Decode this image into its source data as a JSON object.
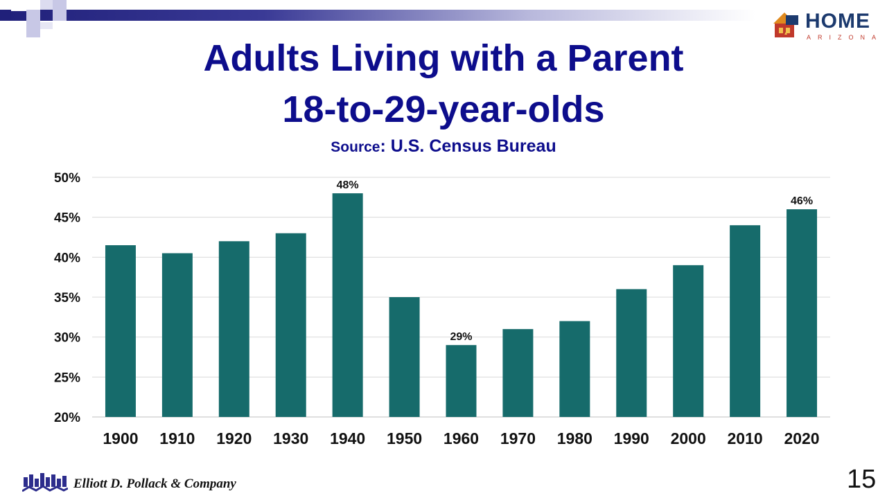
{
  "slide": {
    "title_line1": "Adults Living with a Parent",
    "title_line2": "18-to-29-year-olds",
    "source_label": "Source",
    "source_colon": ":",
    "source_value": " U.S. Census Bureau",
    "page_number": "15"
  },
  "logo": {
    "name": "HOME",
    "sub": "ARIZONA"
  },
  "footer": {
    "company": "Elliott D. Pollack & Company"
  },
  "colors": {
    "title": "#0d0d8c",
    "bar": "#166b6b",
    "gridline": "#d9d9d9"
  },
  "chart_data": {
    "type": "bar",
    "categories": [
      "1900",
      "1910",
      "1920",
      "1930",
      "1940",
      "1950",
      "1960",
      "1970",
      "1980",
      "1990",
      "2000",
      "2010",
      "2020"
    ],
    "values": [
      41.5,
      40.5,
      42,
      43,
      48,
      35,
      29,
      31,
      32,
      36,
      39,
      44,
      46
    ],
    "data_labels": [
      {
        "category": "1940",
        "text": "48%"
      },
      {
        "category": "1960",
        "text": "29%"
      },
      {
        "category": "2020",
        "text": "46%"
      }
    ],
    "ylim": [
      20,
      50
    ],
    "yticks": [
      20,
      25,
      30,
      35,
      40,
      45,
      50
    ],
    "ytick_labels": [
      "20%",
      "25%",
      "30%",
      "35%",
      "40%",
      "45%",
      "50%"
    ],
    "title": "",
    "xlabel": "",
    "ylabel": "",
    "grid": true,
    "legend": "none"
  }
}
